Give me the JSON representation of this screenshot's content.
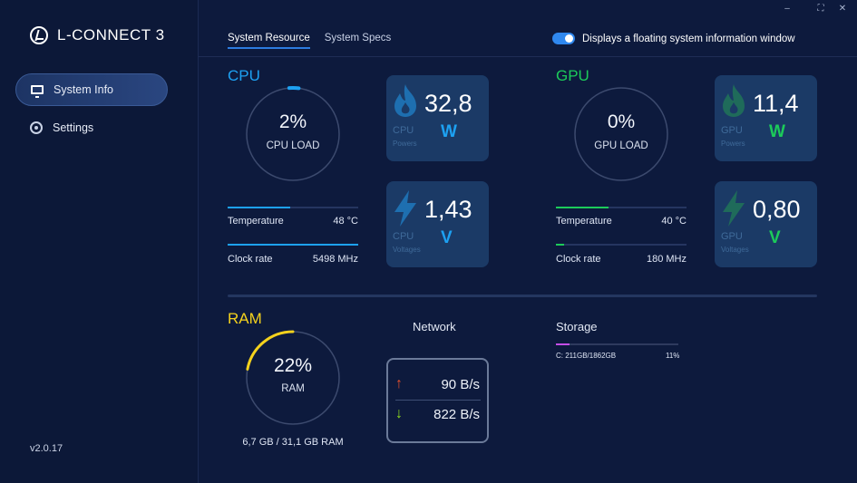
{
  "app": {
    "title": "L-CONNECT 3",
    "version": "v2.0.17"
  },
  "window_controls": [
    "–",
    "⛶",
    "✕"
  ],
  "sidebar": {
    "items": [
      {
        "label": "System Info",
        "icon": "monitor-icon",
        "active": true
      },
      {
        "label": "Settings",
        "icon": "gear-icon",
        "active": false
      }
    ]
  },
  "tabs": [
    {
      "label": "System Resource",
      "active": true
    },
    {
      "label": "System Specs",
      "active": false
    }
  ],
  "floating_toggle": {
    "label": "Displays a floating system information window",
    "on": true
  },
  "colors": {
    "cpu": "#1da1f2",
    "gpu": "#1ccb5a",
    "ram": "#f4d21d",
    "storage": "#c44ee6",
    "accent": "#2f88ef"
  },
  "cpu": {
    "title": "CPU",
    "load_value": "2%",
    "load_label": "CPU LOAD",
    "load_fraction": 0.02,
    "power": {
      "value": "32,8",
      "unit": "W",
      "name": "CPU",
      "sub": "Powers"
    },
    "voltage": {
      "value": "1,43",
      "unit": "V",
      "name": "CPU",
      "sub": "Voltages"
    },
    "temperature": {
      "label": "Temperature",
      "value": "48 °C",
      "fraction": 0.48
    },
    "clock": {
      "label": "Clock rate",
      "value": "5498 MHz",
      "fraction": 1.0
    }
  },
  "gpu": {
    "title": "GPU",
    "load_value": "0%",
    "load_label": "GPU LOAD",
    "load_fraction": 0.0,
    "power": {
      "value": "11,4",
      "unit": "W",
      "name": "GPU",
      "sub": "Powers"
    },
    "voltage": {
      "value": "0,80",
      "unit": "V",
      "name": "GPU",
      "sub": "Voltages"
    },
    "temperature": {
      "label": "Temperature",
      "value": "40 °C",
      "fraction": 0.4
    },
    "clock": {
      "label": "Clock rate",
      "value": "180 MHz",
      "fraction": 0.06
    }
  },
  "ram": {
    "title": "RAM",
    "load_value": "22%",
    "load_label": "RAM",
    "load_fraction": 0.22,
    "capacity": "6,7 GB / 31,1 GB RAM"
  },
  "network": {
    "title": "Network",
    "upload": "90 B/s",
    "download": "822 B/s"
  },
  "storage": {
    "title": "Storage",
    "drives": [
      {
        "label": "C: 211GB/1862GB",
        "percent": "11%",
        "fraction": 0.11
      }
    ]
  }
}
